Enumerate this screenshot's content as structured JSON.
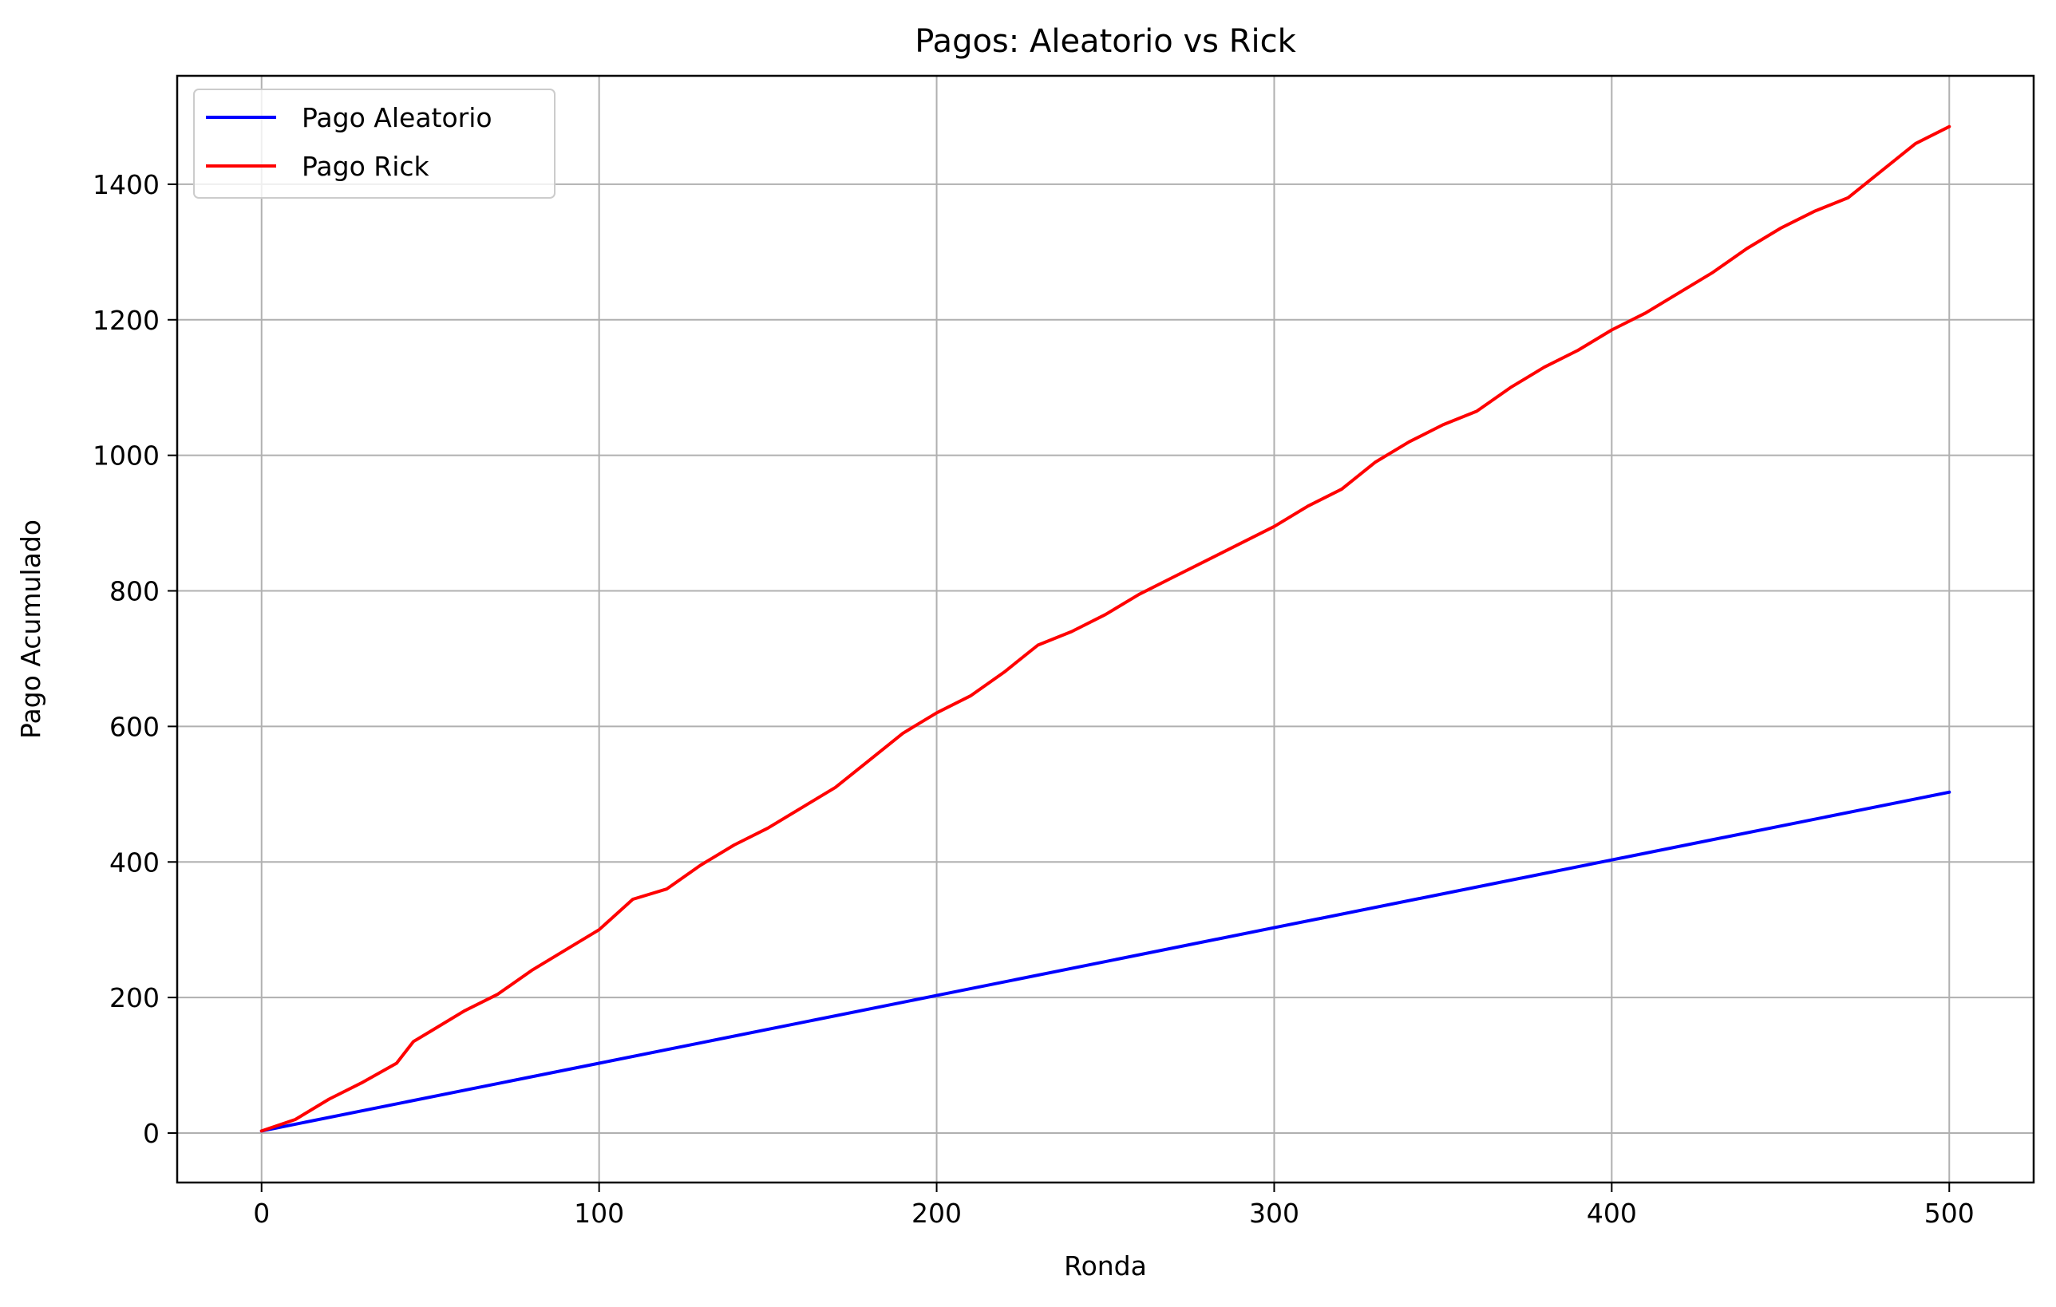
{
  "chart_data": {
    "type": "line",
    "title": "Pagos: Aleatorio vs Rick",
    "xlabel": "Ronda",
    "ylabel": "Pago Acumulado",
    "xlim": [
      -25,
      525
    ],
    "ylim": [
      -73,
      1560
    ],
    "xticks": [
      0,
      100,
      200,
      300,
      400,
      500
    ],
    "yticks": [
      0,
      200,
      400,
      600,
      800,
      1000,
      1200,
      1400
    ],
    "grid": true,
    "legend_position": "top-left",
    "series": [
      {
        "name": "Pago Aleatorio",
        "color": "#0000ff",
        "x": [
          0,
          100,
          200,
          300,
          400,
          500
        ],
        "y": [
          3,
          103,
          203,
          303,
          403,
          503
        ]
      },
      {
        "name": "Pago Rick",
        "color": "#ff0000",
        "x": [
          0,
          10,
          20,
          30,
          40,
          45,
          50,
          60,
          70,
          80,
          90,
          100,
          110,
          120,
          130,
          140,
          150,
          160,
          170,
          180,
          190,
          200,
          210,
          220,
          230,
          240,
          250,
          260,
          270,
          280,
          290,
          300,
          310,
          320,
          330,
          340,
          350,
          360,
          370,
          380,
          390,
          400,
          410,
          420,
          430,
          440,
          450,
          460,
          470,
          480,
          490,
          500
        ],
        "y": [
          3,
          20,
          50,
          75,
          103,
          135,
          150,
          180,
          205,
          240,
          270,
          300,
          345,
          360,
          395,
          425,
          450,
          480,
          510,
          550,
          590,
          620,
          645,
          680,
          720,
          740,
          765,
          795,
          820,
          845,
          870,
          895,
          925,
          950,
          990,
          1020,
          1045,
          1065,
          1100,
          1130,
          1155,
          1185,
          1210,
          1240,
          1270,
          1305,
          1335,
          1360,
          1380,
          1420,
          1460,
          1485
        ]
      }
    ]
  }
}
